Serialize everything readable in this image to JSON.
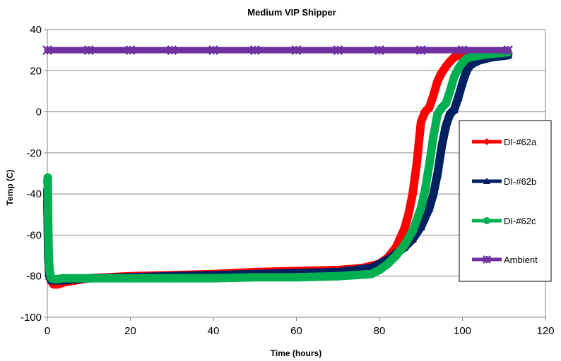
{
  "chart_data": {
    "type": "line",
    "title": "Medium VIP Shipper",
    "xlabel": "Time (hours)",
    "ylabel": "Temp (C)",
    "xlim": [
      0,
      120
    ],
    "ylim": [
      -100,
      40
    ],
    "xticks": [
      0,
      20,
      40,
      60,
      80,
      100,
      120
    ],
    "yticks": [
      40,
      20,
      0,
      -20,
      -40,
      -60,
      -80,
      -100
    ],
    "grid": "horizontal",
    "legend_position": "right",
    "series": [
      {
        "name": "DI-#62a",
        "color": "#ff0000",
        "marker": "diamond",
        "x": [
          0,
          0.2,
          0.4,
          0.8,
          1.5,
          2.5,
          4,
          10,
          20,
          30,
          40,
          50,
          60,
          70,
          76,
          80,
          82,
          84,
          86,
          87,
          88,
          89,
          90,
          91,
          92,
          93,
          94,
          95,
          96,
          97,
          98,
          99,
          100,
          102,
          105,
          108,
          111
        ],
        "y": [
          -44,
          -63,
          -78,
          -82,
          -84,
          -84,
          -83,
          -81,
          -80,
          -79.5,
          -79,
          -78,
          -77.5,
          -77,
          -76,
          -74,
          -71,
          -66,
          -57,
          -50,
          -40,
          -25,
          -5,
          0,
          2,
          8,
          15,
          19,
          22,
          24.5,
          26.5,
          27.5,
          28,
          28.5,
          28.5,
          28.5,
          28.5
        ]
      },
      {
        "name": "DI-#62b",
        "color": "#002060",
        "marker": "triangle",
        "x": [
          0,
          0.2,
          0.5,
          1,
          2,
          4,
          10,
          20,
          30,
          40,
          50,
          60,
          70,
          78,
          82,
          84,
          86,
          88,
          90,
          92,
          93,
          94,
          95,
          96,
          97,
          98,
          99,
          100,
          101,
          102,
          104,
          107,
          111
        ],
        "y": [
          -38,
          -70,
          -80,
          -82,
          -82,
          -82,
          -81,
          -80.5,
          -80,
          -79.5,
          -79,
          -78.5,
          -78,
          -76,
          -72,
          -69,
          -66,
          -62,
          -56,
          -47,
          -40,
          -30,
          -17,
          -7,
          -1,
          1,
          7,
          14,
          20,
          23,
          25,
          26.5,
          27.5
        ]
      },
      {
        "name": "DI-#62c",
        "color": "#00b050",
        "marker": "circle",
        "x": [
          0,
          0.1,
          0.2,
          0.3,
          0.4,
          0.5,
          0.6,
          0.8,
          1,
          2,
          4,
          10,
          20,
          30,
          40,
          50,
          60,
          70,
          78,
          80,
          82,
          84,
          86,
          88,
          90,
          91,
          92,
          93,
          94,
          95,
          96,
          97,
          98,
          99,
          100,
          101,
          103,
          106,
          111
        ],
        "y": [
          -34,
          -32,
          -55,
          -67,
          -73,
          -76,
          -78,
          -80,
          -81,
          -81.5,
          -81,
          -81,
          -81,
          -81,
          -81,
          -80.5,
          -80.5,
          -80,
          -79,
          -77,
          -74,
          -70,
          -65,
          -58,
          -47,
          -38,
          -26,
          -12,
          -1,
          2,
          4,
          10,
          17,
          21,
          24,
          26,
          27,
          28,
          29
        ]
      },
      {
        "name": "Ambient",
        "color": "#7030a0",
        "marker": "x",
        "x": [
          0,
          10,
          20,
          30,
          40,
          50,
          60,
          70,
          80,
          90,
          100,
          111
        ],
        "y": [
          30,
          30,
          30,
          30,
          30,
          30,
          30,
          30,
          30,
          30,
          30,
          30
        ]
      }
    ]
  }
}
